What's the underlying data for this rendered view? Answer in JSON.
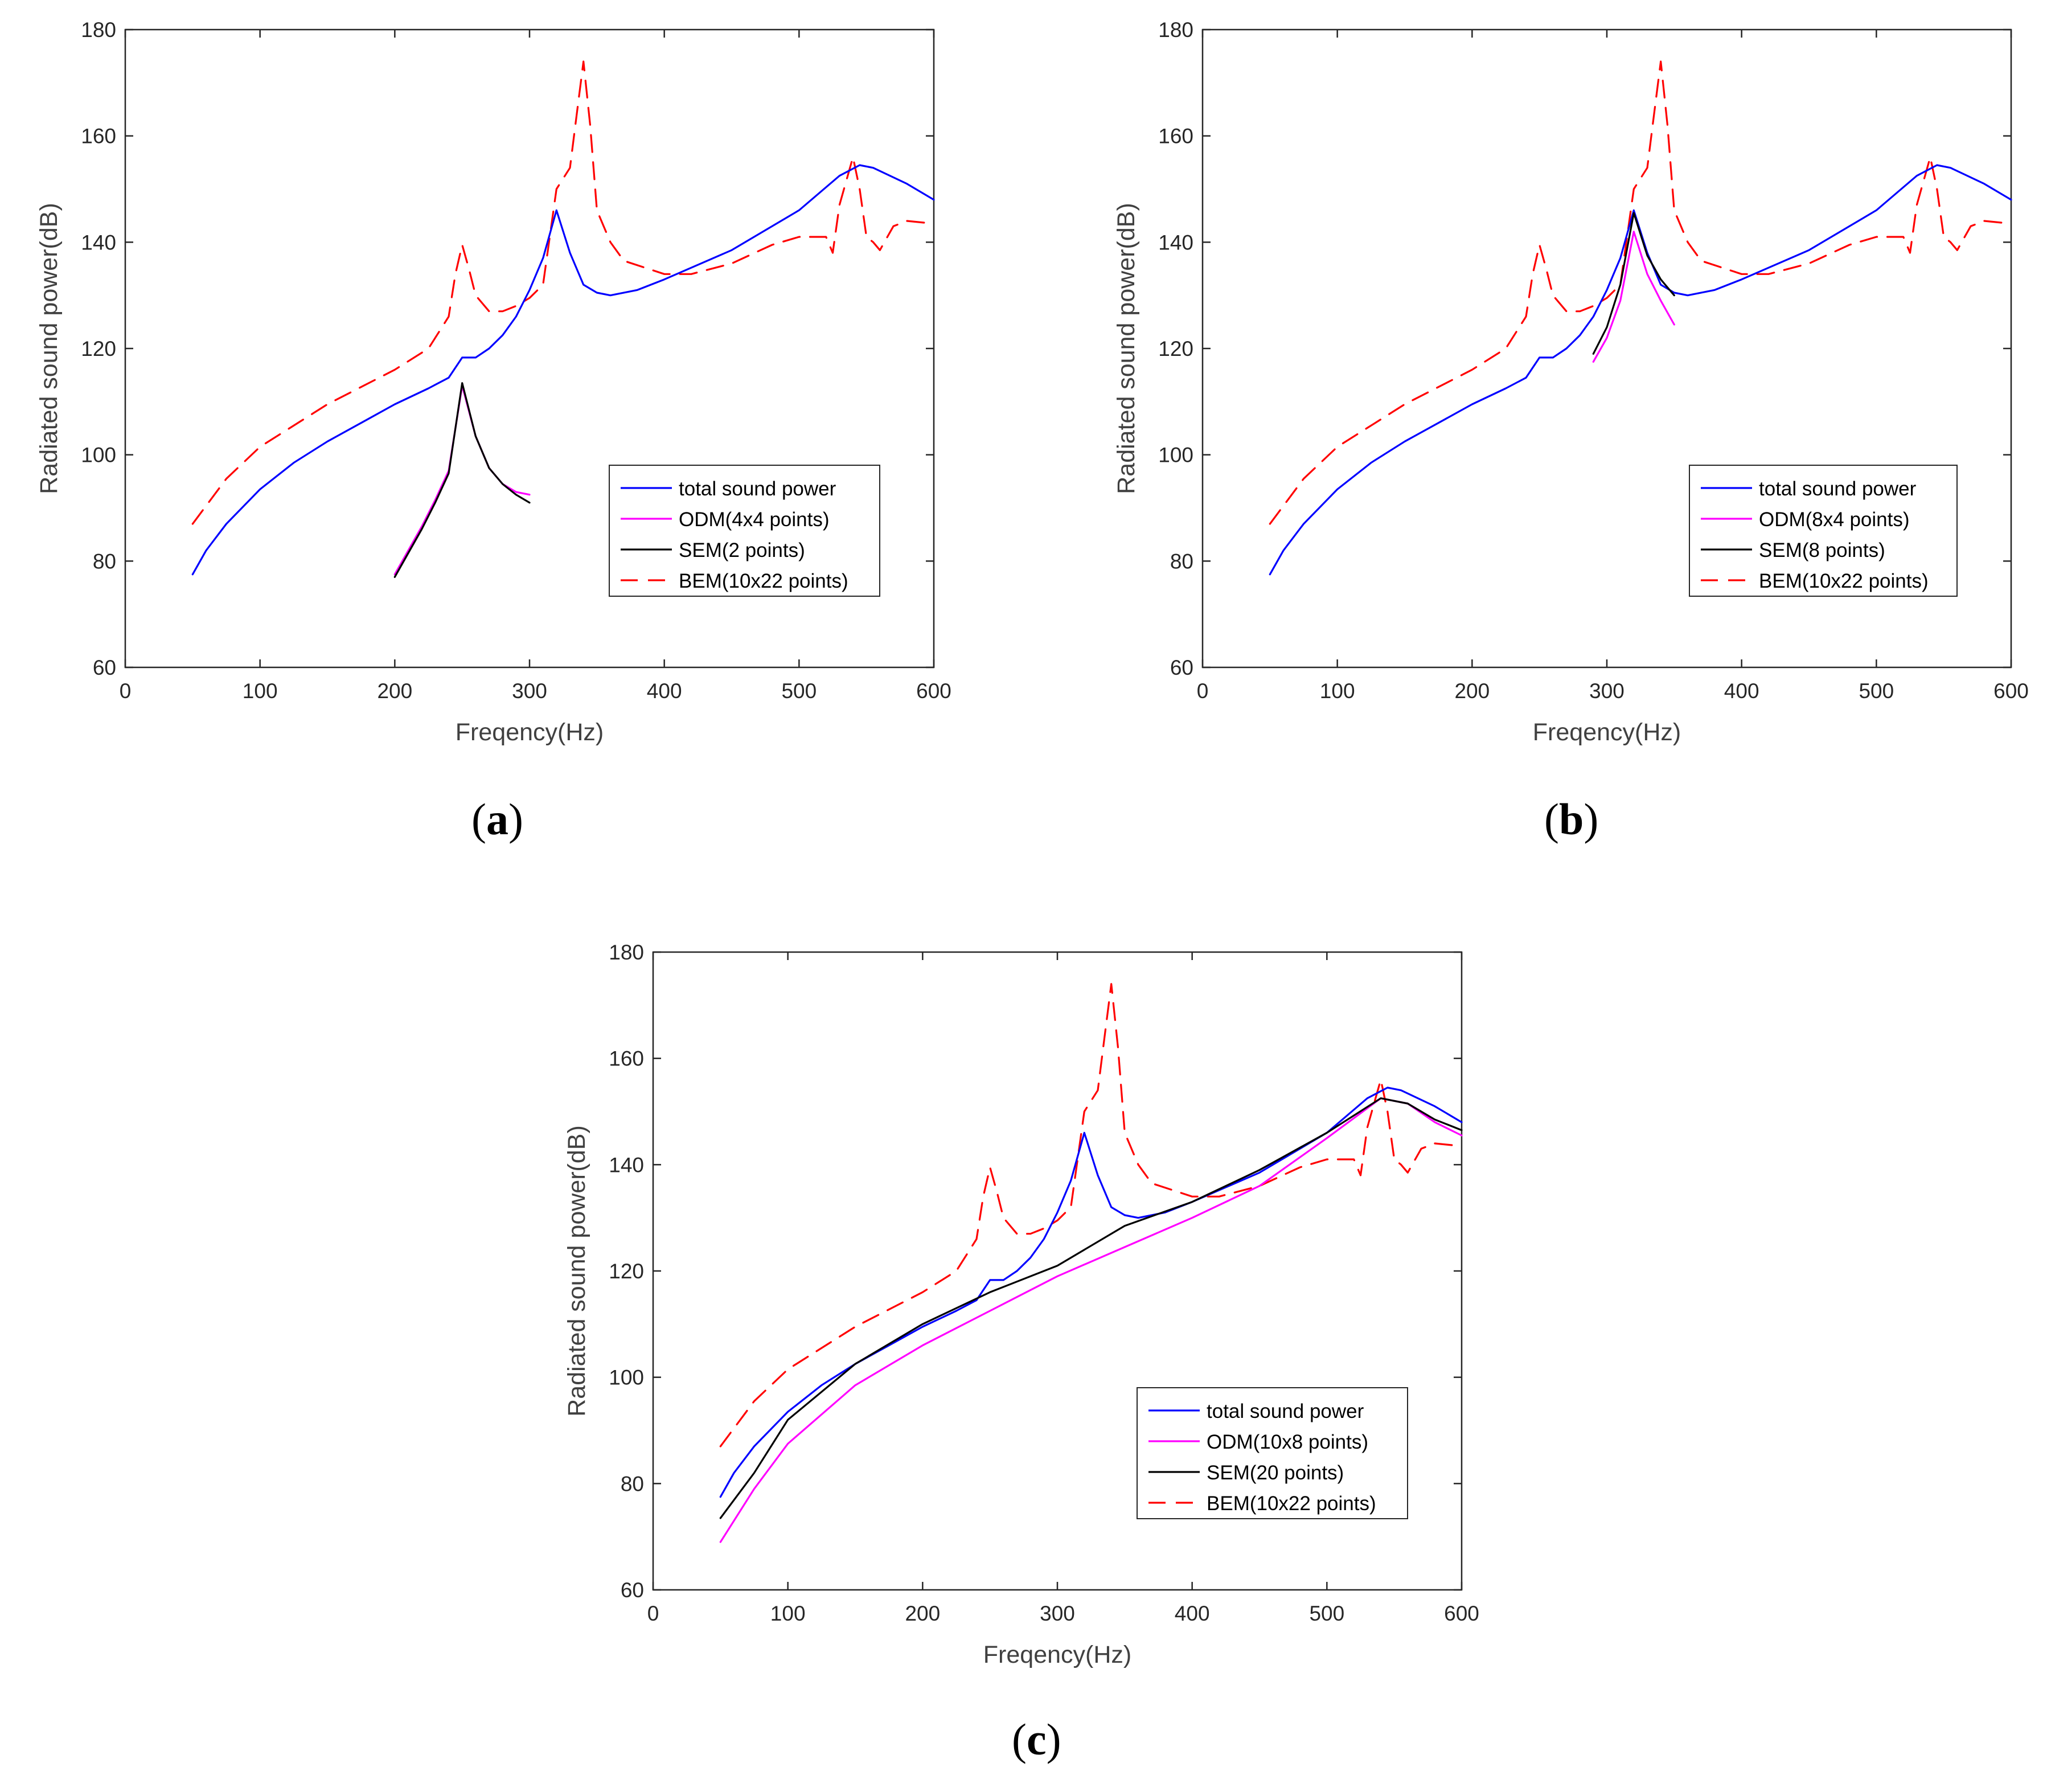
{
  "figure": {
    "captions": [
      {
        "open": "(",
        "letter": "a",
        "close": ")"
      },
      {
        "open": "(",
        "letter": "b",
        "close": ")"
      },
      {
        "open": "(",
        "letter": "c",
        "close": ")"
      }
    ],
    "colors": {
      "total": "#0000ff",
      "odm": "#ff00ff",
      "sem": "#000000",
      "bem": "#ff0000",
      "axis": "#262626",
      "text": "#404040"
    }
  },
  "chart_data": [
    {
      "id": "a",
      "type": "line",
      "xlabel": "Freqency(Hz)",
      "ylabel": "Radiated sound power(dB)",
      "xlim": [
        0,
        600
      ],
      "ylim": [
        60,
        180
      ],
      "xticks": [
        0,
        100,
        200,
        300,
        400,
        500,
        600
      ],
      "yticks": [
        60,
        80,
        100,
        120,
        140,
        160,
        180
      ],
      "legend_position": "lower-right",
      "series": [
        {
          "name": "total sound power",
          "style": "solid",
          "color": "#0000ff",
          "x": [
            50,
            60,
            75,
            100,
            125,
            150,
            175,
            200,
            225,
            240,
            250,
            260,
            270,
            280,
            290,
            300,
            310,
            320,
            330,
            340,
            350,
            360,
            380,
            400,
            450,
            500,
            530,
            545,
            555,
            580,
            600
          ],
          "y": [
            77.5,
            82,
            87,
            93.5,
            98.5,
            102.5,
            106,
            109.5,
            112.5,
            114.5,
            118.3,
            118.3,
            120,
            122.5,
            126,
            131,
            137,
            146,
            138,
            132,
            130.5,
            130,
            131,
            133,
            138.5,
            146,
            152.5,
            154.5,
            154,
            151,
            148
          ]
        },
        {
          "name": "ODM(4x4 points)",
          "style": "solid",
          "color": "#ff00ff",
          "x": [
            200,
            210,
            220,
            230,
            240,
            250,
            260,
            270,
            280,
            290,
            300
          ],
          "y": [
            77.5,
            82,
            86.5,
            91.5,
            97,
            113,
            103.5,
            97.5,
            94.5,
            93,
            92.5
          ]
        },
        {
          "name": "SEM(2 points)",
          "style": "solid",
          "color": "#000000",
          "x": [
            200,
            210,
            220,
            230,
            240,
            250,
            260,
            270,
            280,
            290,
            300
          ],
          "y": [
            77,
            81.5,
            86,
            91,
            96.5,
            113.5,
            103.5,
            97.5,
            94.5,
            92.5,
            91
          ]
        },
        {
          "name": "BEM(10x22 points)",
          "style": "dashed",
          "color": "#ff0000",
          "x": [
            50,
            75,
            100,
            150,
            200,
            225,
            240,
            245,
            250,
            255,
            260,
            270,
            280,
            290,
            300,
            310,
            320,
            330,
            335,
            340,
            345,
            350,
            360,
            370,
            400,
            420,
            450,
            480,
            500,
            520,
            525,
            530,
            540,
            545,
            550,
            555,
            560,
            570,
            580,
            600
          ],
          "y": [
            87,
            95.5,
            101.5,
            109.5,
            116,
            120,
            126,
            134,
            139.5,
            135,
            130,
            127,
            127,
            128,
            129.5,
            132,
            150,
            154,
            164,
            174,
            162,
            146,
            140,
            136.5,
            134,
            134,
            136,
            139.5,
            141,
            141,
            138,
            147,
            156,
            150,
            141,
            140,
            138.5,
            143,
            144,
            143.5
          ]
        }
      ]
    },
    {
      "id": "b",
      "type": "line",
      "xlabel": "Freqency(Hz)",
      "ylabel": "Radiated sound power(dB)",
      "xlim": [
        0,
        600
      ],
      "ylim": [
        60,
        180
      ],
      "xticks": [
        0,
        100,
        200,
        300,
        400,
        500,
        600
      ],
      "yticks": [
        60,
        80,
        100,
        120,
        140,
        160,
        180
      ],
      "legend_position": "lower-right",
      "series": [
        {
          "name": "total sound power",
          "style": "solid",
          "color": "#0000ff",
          "x": [
            50,
            60,
            75,
            100,
            125,
            150,
            175,
            200,
            225,
            240,
            250,
            260,
            270,
            280,
            290,
            300,
            310,
            320,
            330,
            340,
            350,
            360,
            380,
            400,
            450,
            500,
            530,
            545,
            555,
            580,
            600
          ],
          "y": [
            77.5,
            82,
            87,
            93.5,
            98.5,
            102.5,
            106,
            109.5,
            112.5,
            114.5,
            118.3,
            118.3,
            120,
            122.5,
            126,
            131,
            137,
            146,
            138,
            132,
            130.5,
            130,
            131,
            133,
            138.5,
            146,
            152.5,
            154.5,
            154,
            151,
            148
          ]
        },
        {
          "name": "ODM(8x4 points)",
          "style": "solid",
          "color": "#ff00ff",
          "x": [
            290,
            300,
            310,
            320,
            330,
            340,
            350
          ],
          "y": [
            117.5,
            122,
            129,
            142,
            134,
            129,
            124.5
          ]
        },
        {
          "name": "SEM(8 points)",
          "style": "solid",
          "color": "#000000",
          "x": [
            290,
            300,
            310,
            320,
            330,
            340,
            350
          ],
          "y": [
            119,
            124,
            132,
            145.5,
            137.5,
            133,
            130
          ]
        },
        {
          "name": "BEM(10x22 points)",
          "style": "dashed",
          "color": "#ff0000",
          "x": [
            50,
            75,
            100,
            150,
            200,
            225,
            240,
            245,
            250,
            255,
            260,
            270,
            280,
            290,
            300,
            310,
            320,
            330,
            335,
            340,
            345,
            350,
            360,
            370,
            400,
            420,
            450,
            480,
            500,
            520,
            525,
            530,
            540,
            545,
            550,
            555,
            560,
            570,
            580,
            600
          ],
          "y": [
            87,
            95.5,
            101.5,
            109.5,
            116,
            120,
            126,
            134,
            139.5,
            135,
            130,
            127,
            127,
            128,
            129.5,
            132,
            150,
            154,
            164,
            174,
            162,
            146,
            140,
            136.5,
            134,
            134,
            136,
            139.5,
            141,
            141,
            138,
            147,
            156,
            150,
            141,
            140,
            138.5,
            143,
            144,
            143.5
          ]
        }
      ]
    },
    {
      "id": "c",
      "type": "line",
      "xlabel": "Freqency(Hz)",
      "ylabel": "Radiated sound power(dB)",
      "xlim": [
        0,
        600
      ],
      "ylim": [
        60,
        180
      ],
      "xticks": [
        0,
        100,
        200,
        300,
        400,
        500,
        600
      ],
      "yticks": [
        60,
        80,
        100,
        120,
        140,
        160,
        180
      ],
      "legend_position": "lower-right",
      "series": [
        {
          "name": "total sound power",
          "style": "solid",
          "color": "#0000ff",
          "x": [
            50,
            60,
            75,
            100,
            125,
            150,
            175,
            200,
            225,
            240,
            250,
            260,
            270,
            280,
            290,
            300,
            310,
            320,
            330,
            340,
            350,
            360,
            380,
            400,
            450,
            500,
            530,
            545,
            555,
            580,
            600
          ],
          "y": [
            77.5,
            82,
            87,
            93.5,
            98.5,
            102.5,
            106,
            109.5,
            112.5,
            114.5,
            118.3,
            118.3,
            120,
            122.5,
            126,
            131,
            137,
            146,
            138,
            132,
            130.5,
            130,
            131,
            133,
            138.5,
            146,
            152.5,
            154.5,
            154,
            151,
            148
          ]
        },
        {
          "name": "ODM(10x8 points)",
          "style": "solid",
          "color": "#ff00ff",
          "x": [
            50,
            75,
            100,
            150,
            200,
            250,
            300,
            350,
            400,
            450,
            500,
            540,
            560,
            580,
            600
          ],
          "y": [
            69,
            79,
            87.5,
            98.5,
            106,
            112.5,
            119,
            124.5,
            130,
            136,
            145,
            152.5,
            151.5,
            148,
            145.5
          ]
        },
        {
          "name": "SEM(20 points)",
          "style": "solid",
          "color": "#000000",
          "x": [
            50,
            75,
            100,
            150,
            200,
            250,
            300,
            350,
            400,
            450,
            500,
            540,
            560,
            580,
            600
          ],
          "y": [
            73.5,
            82,
            92,
            102.5,
            110,
            116,
            121,
            128.5,
            133,
            139,
            146,
            152.5,
            151.5,
            148.5,
            146.5
          ]
        },
        {
          "name": "BEM(10x22 points)",
          "style": "dashed",
          "color": "#ff0000",
          "x": [
            50,
            75,
            100,
            150,
            200,
            225,
            240,
            245,
            250,
            255,
            260,
            270,
            280,
            290,
            300,
            310,
            320,
            330,
            335,
            340,
            345,
            350,
            360,
            370,
            400,
            420,
            450,
            480,
            500,
            520,
            525,
            530,
            540,
            545,
            550,
            555,
            560,
            570,
            580,
            600
          ],
          "y": [
            87,
            95.5,
            101.5,
            109.5,
            116,
            120,
            126,
            134,
            139.5,
            135,
            130,
            127,
            127,
            128,
            129.5,
            132,
            150,
            154,
            164,
            174,
            162,
            146,
            140,
            136.5,
            134,
            134,
            136,
            139.5,
            141,
            141,
            138,
            147,
            156,
            150,
            141,
            140,
            138.5,
            143,
            144,
            143.5
          ]
        }
      ]
    }
  ]
}
